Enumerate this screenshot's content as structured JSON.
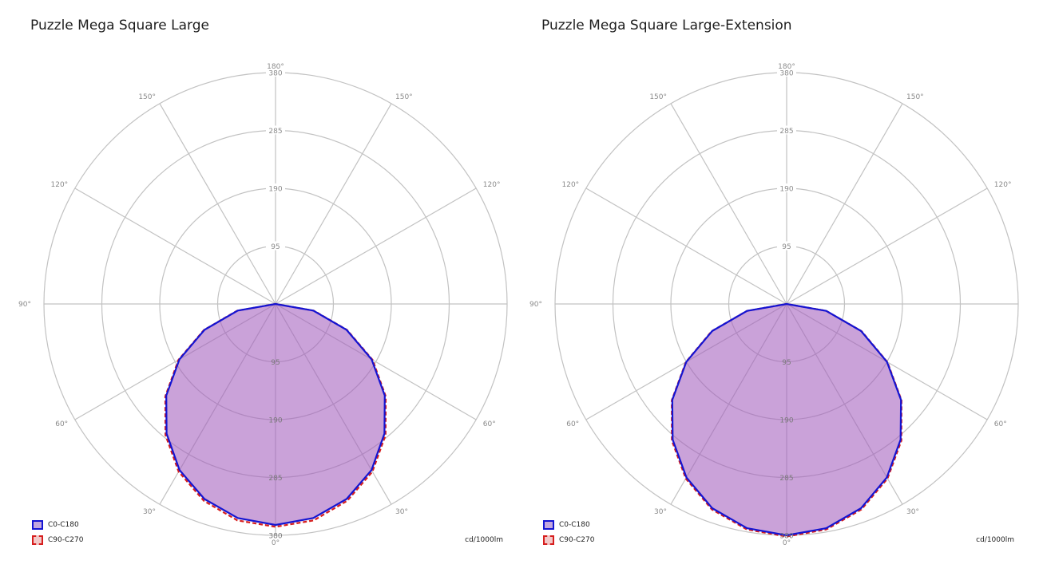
{
  "chart_data": [
    {
      "type": "polar",
      "title": "Puzzle Mega Square Large",
      "unit": "cd/1000lm",
      "radial_range": [
        0,
        380
      ],
      "radial_ticks": [
        95,
        190,
        285,
        380
      ],
      "radial_tick_labels": [
        "95",
        "190",
        "285",
        "380"
      ],
      "angle_labels": [
        "0°",
        "30°",
        "60°",
        "90°",
        "120°",
        "150°",
        "180°"
      ],
      "grid": true,
      "legend_position": "bottom-left",
      "series": [
        {
          "name": "C0-C180",
          "color": "#1414d2",
          "line": "solid",
          "angles": [
            0,
            10,
            20,
            30,
            40,
            50,
            60,
            70,
            80,
            90
          ],
          "values": [
            363,
            357,
            341,
            315,
            278,
            234,
            182,
            124,
            63,
            0
          ]
        },
        {
          "name": "C90-C270",
          "color": "#d61e1e",
          "line": "dashed",
          "angles": [
            0,
            10,
            20,
            30,
            40,
            50,
            60,
            70,
            80,
            90
          ],
          "values": [
            366,
            361,
            344,
            318,
            281,
            236,
            184,
            125,
            64,
            0
          ]
        }
      ]
    },
    {
      "type": "polar",
      "title": "Puzzle Mega Square Large-Extension",
      "unit": "cd/1000lm",
      "radial_range": [
        0,
        380
      ],
      "radial_ticks": [
        95,
        190,
        285,
        380
      ],
      "radial_tick_labels": [
        "95",
        "190",
        "285",
        "380"
      ],
      "angle_labels": [
        "0°",
        "30°",
        "60°",
        "90°",
        "120°",
        "150°",
        "180°"
      ],
      "grid": true,
      "legend_position": "bottom-left",
      "series": [
        {
          "name": "C0-C180",
          "color": "#1414d2",
          "line": "solid",
          "angles": [
            0,
            10,
            20,
            30,
            40,
            50,
            60,
            70,
            80,
            90
          ],
          "values": [
            380,
            374,
            357,
            329,
            291,
            245,
            190,
            130,
            66,
            0
          ]
        },
        {
          "name": "C90-C270",
          "color": "#d61e1e",
          "line": "dashed",
          "angles": [
            0,
            10,
            20,
            30,
            40,
            50,
            60,
            70,
            80,
            90
          ],
          "values": [
            382,
            376,
            359,
            331,
            293,
            246,
            191,
            131,
            66,
            0
          ]
        }
      ]
    }
  ]
}
